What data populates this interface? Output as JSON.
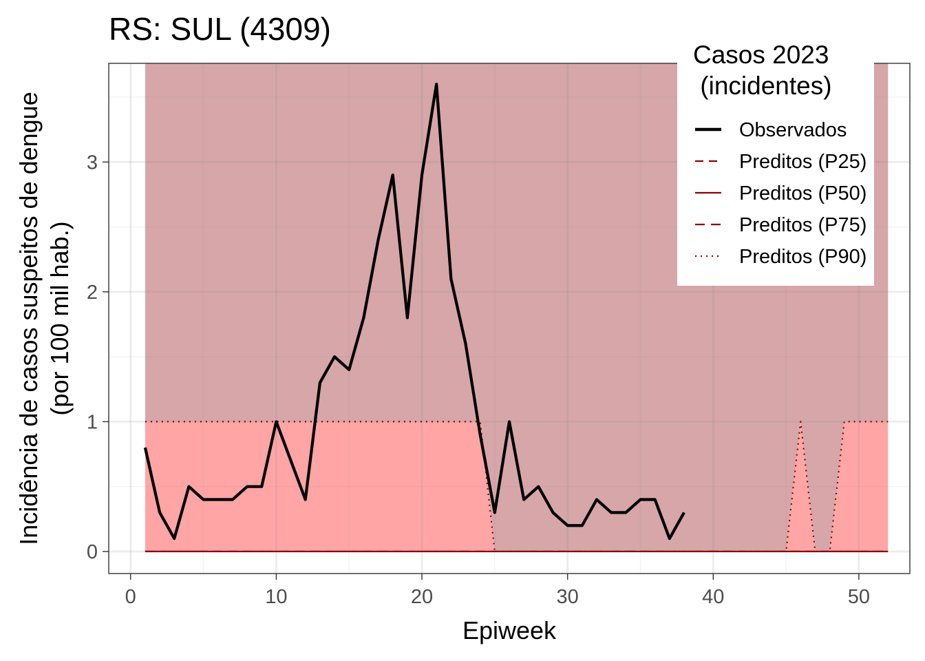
{
  "chart_data": {
    "type": "line",
    "title": "RS: SUL (4309)",
    "xlabel": "Epiweek",
    "ylabel_line1": "Incidência de casos suspeitos de dengue",
    "ylabel_line2": "(por 100 mil hab.)",
    "xlim": [
      -1.5,
      53.5
    ],
    "ylim": [
      -0.17,
      3.76
    ],
    "x_ticks": [
      0,
      10,
      20,
      30,
      40,
      50
    ],
    "y_ticks": [
      0,
      1,
      2,
      3
    ],
    "grid": true,
    "legend": {
      "title_line1": "Casos 2023",
      "title_line2": " (incidentes)",
      "placement": "top-right",
      "entries": [
        {
          "label": "Observados",
          "style": "solid-thick",
          "color": "#000000"
        },
        {
          "label": "Preditos (P25)",
          "style": "dashed",
          "color": "#8b0000"
        },
        {
          "label": "Preditos (P50)",
          "style": "solid",
          "color": "#8b0000"
        },
        {
          "label": "Preditos (P75)",
          "style": "longdash",
          "color": "#8b0000"
        },
        {
          "label": "Preditos (P90)",
          "style": "dotted",
          "color": "#8b0000"
        }
      ]
    },
    "colors": {
      "observed": "#000000",
      "predicted": "#8b0000",
      "band_upper": "#d6a6a8",
      "band_p90": "#ffa5a6"
    },
    "band_upper_value": 3.76,
    "observed": {
      "x": [
        1,
        2,
        3,
        4,
        5,
        6,
        7,
        8,
        9,
        10,
        11,
        12,
        13,
        14,
        15,
        16,
        17,
        18,
        19,
        20,
        21,
        22,
        23,
        24,
        25,
        26,
        27,
        28,
        29,
        30,
        31,
        32,
        33,
        34,
        35,
        36,
        37,
        38
      ],
      "y": [
        0.8,
        0.3,
        0.1,
        0.5,
        0.4,
        0.4,
        0.4,
        0.5,
        0.5,
        1.0,
        0.7,
        0.4,
        1.3,
        1.5,
        1.4,
        1.8,
        2.4,
        2.9,
        1.8,
        2.9,
        3.6,
        2.1,
        1.6,
        0.9,
        0.3,
        1.0,
        0.4,
        0.5,
        0.3,
        0.2,
        0.2,
        0.4,
        0.3,
        0.3,
        0.4,
        0.4,
        0.1,
        0.3
      ]
    },
    "predicted_p25": {
      "x": [
        1,
        52
      ],
      "y": [
        0,
        0
      ]
    },
    "predicted_p50": {
      "x": [
        1,
        52
      ],
      "y": [
        0,
        0
      ]
    },
    "predicted_p75": {
      "x": [
        1,
        52
      ],
      "y": [
        0,
        0
      ]
    },
    "predicted_p90": {
      "x": [
        1,
        24,
        25,
        45,
        46,
        47,
        48,
        49,
        52
      ],
      "y": [
        1,
        1,
        0,
        0,
        1,
        0,
        0,
        1,
        1
      ]
    }
  }
}
